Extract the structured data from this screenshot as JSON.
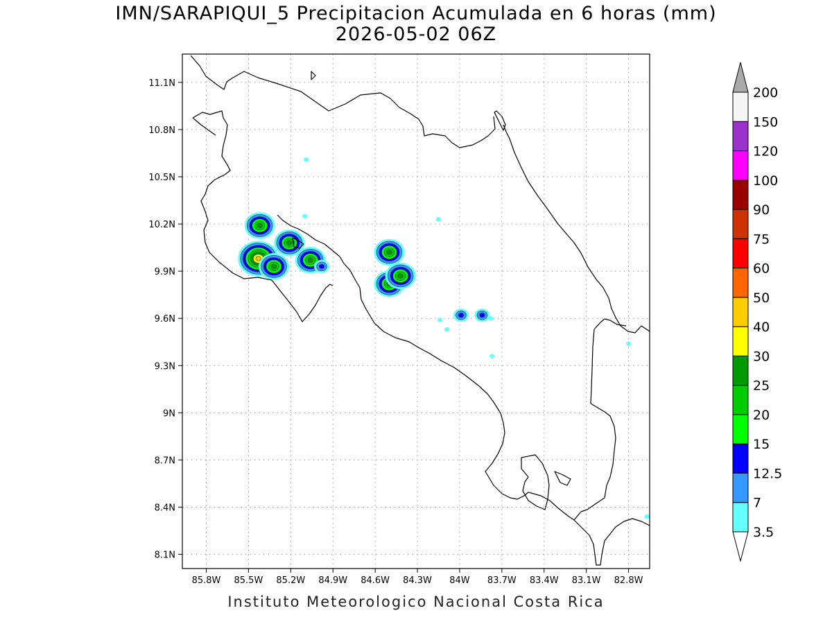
{
  "title": "IMN/SARAPIQUI_5 Precipitacion Acumulada en 6 horas (mm)",
  "subtitle": "2026-05-02 06Z",
  "footer": "Instituto Meteorologico Nacional Costa Rica",
  "map": {
    "lon_range": [
      -85.97,
      -82.65
    ],
    "lat_range": [
      8.01,
      11.28
    ],
    "x_ticks": [
      "85.8W",
      "85.5W",
      "85.2W",
      "84.9W",
      "84.6W",
      "84.3W",
      "84W",
      "83.7W",
      "83.4W",
      "83.1W",
      "82.8W"
    ],
    "y_ticks": [
      "11.1N",
      "10.8N",
      "10.5N",
      "10.2N",
      "9.9N",
      "9.6N",
      "9.3N",
      "9N",
      "8.7N",
      "8.4N",
      "8.1N"
    ],
    "grid": "dotted",
    "precip_cells": [
      {
        "lon": -85.42,
        "lat": 10.19,
        "max": 25
      },
      {
        "lon": -85.21,
        "lat": 10.08,
        "max": 25
      },
      {
        "lon": -85.43,
        "lat": 9.98,
        "max": 40
      },
      {
        "lon": -85.32,
        "lat": 9.93,
        "max": 25
      },
      {
        "lon": -85.06,
        "lat": 9.97,
        "max": 25
      },
      {
        "lon": -84.98,
        "lat": 9.93,
        "max": 12.5
      },
      {
        "lon": -84.5,
        "lat": 10.02,
        "max": 25
      },
      {
        "lon": -84.5,
        "lat": 9.82,
        "max": 25
      },
      {
        "lon": -84.42,
        "lat": 9.87,
        "max": 25
      },
      {
        "lon": -83.99,
        "lat": 9.62,
        "max": 12.5
      },
      {
        "lon": -83.84,
        "lat": 9.62,
        "max": 12.5
      },
      {
        "lon": -84.15,
        "lat": 10.23,
        "max": 3.5
      },
      {
        "lon": -85.1,
        "lat": 10.25,
        "max": 3.5
      },
      {
        "lon": -85.09,
        "lat": 10.61,
        "max": 3.5
      },
      {
        "lon": -84.14,
        "lat": 9.59,
        "max": 3.5
      },
      {
        "lon": -84.09,
        "lat": 9.53,
        "max": 3.5
      },
      {
        "lon": -83.77,
        "lat": 9.36,
        "max": 3.5
      },
      {
        "lon": -83.78,
        "lat": 9.6,
        "max": 3.5
      },
      {
        "lon": -82.8,
        "lat": 9.44,
        "max": 3.5
      },
      {
        "lon": -82.67,
        "lat": 8.34,
        "max": 3.5
      }
    ]
  },
  "colorbar": {
    "labels": [
      "3.5",
      "7",
      "12.5",
      "15",
      "20",
      "25",
      "30",
      "40",
      "50",
      "60",
      "75",
      "90",
      "100",
      "120",
      "150",
      "200"
    ],
    "colors": [
      "#66ffff",
      "#3399ff",
      "#0000ff",
      "#00ff00",
      "#00cc00",
      "#009900",
      "#ffff00",
      "#ffcc00",
      "#ff6600",
      "#ff0000",
      "#cc3300",
      "#990000",
      "#ff00ff",
      "#9933cc",
      "#f5f5f5",
      "#aaaaaa"
    ]
  },
  "colors": {
    "coastline": "#000000",
    "grid": "#9a9a9a"
  }
}
